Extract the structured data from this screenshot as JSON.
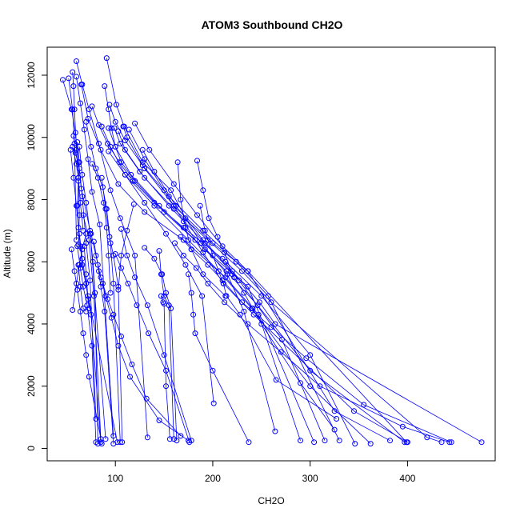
{
  "chart_data": {
    "type": "line",
    "title": "ATOM3 Southbound CH2O",
    "xlabel": "CH2O",
    "ylabel": "Altitude (m)",
    "xlim": [
      30,
      490
    ],
    "ylim": [
      -400,
      12900
    ],
    "xticks": [
      100,
      200,
      300,
      400
    ],
    "yticks": [
      0,
      2000,
      4000,
      6000,
      8000,
      10000,
      12000
    ],
    "color": "#0000ff",
    "marker": "open-circle",
    "grid": false,
    "series": [
      {
        "x": [
          91,
          101,
          109,
          128,
          157,
          172,
          188,
          215,
          232,
          264
        ],
        "y": [
          12550,
          11050,
          10350,
          9200,
          8300,
          7400,
          6600,
          5600,
          4400,
          550
        ]
      },
      {
        "x": [
          60,
          66,
          73,
          83,
          95,
          105,
          120,
          133
        ],
        "y": [
          12450,
          11700,
          10900,
          9800,
          8300,
          7400,
          6200,
          350
        ]
      },
      {
        "x": [
          56,
          57,
          58,
          60,
          62,
          63,
          62
        ],
        "y": [
          12100,
          11650,
          10900,
          9600,
          8700,
          7500,
          6550
        ]
      },
      {
        "x": [
          46,
          55,
          59,
          62,
          65,
          74,
          90
        ],
        "y": [
          11850,
          10900,
          10150,
          9200,
          8350,
          7000,
          300
        ]
      },
      {
        "x": [
          60,
          64,
          68,
          72,
          76,
          84,
          98
        ],
        "y": [
          11950,
          11100,
          10250,
          9300,
          8250,
          7200,
          400
        ]
      },
      {
        "x": [
          52,
          56,
          58,
          60
        ],
        "y": [
          11900,
          10900,
          9800,
          6700
        ]
      },
      {
        "x": [
          89,
          93,
          96,
          100,
          106,
          120,
          150,
          192,
          236,
          304
        ],
        "y": [
          11650,
          10900,
          10300,
          9700,
          9200,
          8600,
          7600,
          6400,
          5200,
          200
        ]
      },
      {
        "x": [
          65,
          72,
          85,
          103,
          130,
          170,
          213,
          247,
          290
        ],
        "y": [
          11700,
          10600,
          9600,
          8500,
          7600,
          6700,
          5500,
          4300,
          250
        ]
      },
      {
        "x": [
          76,
          83,
          92,
          104,
          118,
          140,
          170,
          210,
          250,
          300,
          346
        ],
        "y": [
          11000,
          10400,
          9800,
          9200,
          8600,
          7900,
          7100,
          6100,
          4900,
          3000,
          150
        ]
      },
      {
        "x": [
          94,
          100,
          110,
          128,
          155,
          190,
          224,
          257,
          330
        ],
        "y": [
          11050,
          10500,
          9900,
          9100,
          8100,
          7000,
          6000,
          4900,
          250
        ]
      },
      {
        "x": [
          120,
          135,
          160,
          184,
          210,
          236,
          399
        ],
        "y": [
          10450,
          9600,
          8500,
          7500,
          6500,
          5700,
          200
        ]
      },
      {
        "x": [
          108,
          112,
          130,
          160,
          200,
          236,
          325,
          382
        ],
        "y": [
          10350,
          10000,
          9000,
          7800,
          6600,
          5700,
          1200,
          250
        ]
      },
      {
        "x": [
          99,
          105,
          125,
          155,
          192,
          227,
          271,
          315
        ],
        "y": [
          10300,
          9800,
          8900,
          7800,
          6600,
          5400,
          3500,
          250
        ]
      },
      {
        "x": [
          93,
          100,
          116,
          145,
          182,
          214,
          246,
          300,
          397
        ],
        "y": [
          10300,
          9700,
          8800,
          7800,
          6700,
          5700,
          4600,
          2500,
          200
        ]
      },
      {
        "x": [
          86,
          95,
          110,
          140,
          175,
          206,
          240,
          300,
          362
        ],
        "y": [
          10350,
          9700,
          8800,
          7800,
          6700,
          5700,
          4500,
          2000,
          150
        ]
      },
      {
        "x": [
          103,
          110,
          130,
          160,
          195,
          230,
          260,
          420,
          435
        ],
        "y": [
          10200,
          9600,
          8700,
          7700,
          6700,
          5700,
          4700,
          350,
          200
        ]
      },
      {
        "x": [
          70,
          75,
          80,
          87,
          91,
          95,
          98,
          105
        ],
        "y": [
          10500,
          9700,
          9000,
          8400,
          7700,
          6600,
          5300,
          200
        ]
      },
      {
        "x": [
          57,
          59,
          63,
          66,
          70,
          74,
          80
        ],
        "y": [
          10050,
          9500,
          9000,
          8100,
          6600,
          5400,
          950
        ]
      },
      {
        "x": [
          56,
          60,
          62,
          64,
          67
        ],
        "y": [
          9700,
          9150,
          8700,
          7900,
          7000
        ]
      },
      {
        "x": [
          54,
          57,
          60,
          63,
          66,
          70,
          73
        ],
        "y": [
          9600,
          8700,
          7800,
          6900,
          6100,
          5300,
          4500
        ]
      },
      {
        "x": [
          61,
          63,
          62,
          61,
          62,
          64,
          66,
          72,
          102
        ],
        "y": [
          9850,
          9200,
          8600,
          7800,
          7100,
          6500,
          5900,
          4900,
          200
        ]
      },
      {
        "x": [
          63,
          66,
          70,
          74,
          77,
          79,
          82
        ],
        "y": [
          9700,
          8800,
          7900,
          6900,
          6000,
          5000,
          150
        ]
      },
      {
        "x": [
          93,
          110,
          130,
          152,
          172,
          189,
          201
        ],
        "y": [
          9550,
          8800,
          7900,
          6900,
          5900,
          4900,
          1450
        ]
      },
      {
        "x": [
          114,
          130,
          150,
          170,
          190,
          211,
          242,
          345,
          400
        ],
        "y": [
          10250,
          9300,
          8300,
          7300,
          6300,
          5300,
          4300,
          1200,
          200
        ]
      },
      {
        "x": [
          128,
          140,
          162,
          190,
          220,
          248,
          264,
          476
        ],
        "y": [
          9600,
          8900,
          7800,
          6700,
          5700,
          4700,
          4000,
          200
        ]
      },
      {
        "x": [
          184,
          190,
          196,
          205,
          212,
          220
        ],
        "y": [
          9250,
          8300,
          7400,
          6800,
          6300,
          5600
        ]
      },
      {
        "x": [
          164,
          167,
          172,
          178,
          190,
          213
        ],
        "y": [
          9200,
          8000,
          7100,
          6400,
          5600,
          4900
        ]
      },
      {
        "x": [
          76,
          82,
          88,
          91,
          93,
          95
        ],
        "y": [
          9150,
          8700,
          7900,
          7100,
          6200,
          5000
        ]
      },
      {
        "x": [
          86,
          90,
          94,
          98,
          103,
          107
        ],
        "y": [
          8700,
          7700,
          6800,
          6200,
          5200,
          200
        ]
      },
      {
        "x": [
          67,
          73,
          78,
          85
        ],
        "y": [
          7500,
          6700,
          4900,
          300
        ]
      },
      {
        "x": [
          119,
          112,
          106,
          103
        ],
        "y": [
          7850,
          7000,
          6200,
          5100
        ]
      },
      {
        "x": [
          130,
          140,
          148,
          152,
          157,
          163
        ],
        "y": [
          6450,
          6100,
          5600,
          5000,
          4500,
          250
        ]
      },
      {
        "x": [
          78,
          82,
          85,
          89,
          98
        ],
        "y": [
          6650,
          5900,
          5200,
          4400,
          150
        ]
      },
      {
        "x": [
          61,
          64,
          67,
          71,
          76,
          80
        ],
        "y": [
          6500,
          5800,
          5200,
          4600,
          3300,
          200
        ]
      },
      {
        "x": [
          55,
          58,
          61,
          64,
          67,
          70,
          73,
          86
        ],
        "y": [
          6400,
          5700,
          5100,
          4400,
          3700,
          3000,
          2300,
          150
        ]
      },
      {
        "x": [
          56,
          60,
          63,
          66,
          70
        ],
        "y": [
          4450,
          5300,
          5900,
          6400,
          6900
        ]
      },
      {
        "x": [
          62,
          64,
          67,
          70
        ],
        "y": [
          5900,
          5200,
          4500,
          4400
        ]
      },
      {
        "x": [
          68,
          70,
          72,
          75,
          85
        ],
        "y": [
          6500,
          5600,
          4800,
          4300,
          200
        ]
      },
      {
        "x": [
          145,
          147,
          150,
          155,
          160
        ],
        "y": [
          6350,
          5600,
          4900,
          4600,
          300
        ]
      },
      {
        "x": [
          175,
          178,
          180,
          182,
          200,
          237
        ],
        "y": [
          5600,
          5000,
          4300,
          3700,
          2500,
          200
        ]
      },
      {
        "x": [
          147,
          149,
          150,
          152,
          156
        ],
        "y": [
          4900,
          4700,
          4650,
          2000,
          300
        ]
      },
      {
        "x": [
          106,
          112,
          120,
          133,
          150,
          178
        ],
        "y": [
          7050,
          6200,
          5500,
          4600,
          3000,
          250
        ]
      },
      {
        "x": [
          187,
          192,
          200,
          211,
          214,
          228,
          265,
          327
        ],
        "y": [
          7800,
          7000,
          6200,
          5300,
          4900,
          4300,
          2200,
          950
        ]
      },
      {
        "x": [
          100,
          106,
          113,
          122,
          134,
          152,
          176
        ],
        "y": [
          6250,
          5800,
          5300,
          4600,
          3700,
          2500,
          200
        ]
      },
      {
        "x": [
          83,
          87,
          92,
          98,
          106,
          117,
          132,
          167
        ],
        "y": [
          5700,
          5300,
          4800,
          4300,
          3600,
          2700,
          1600,
          400
        ]
      },
      {
        "x": [
          75,
          80,
          85,
          90,
          96,
          103,
          115,
          145,
          175
        ],
        "y": [
          6900,
          6200,
          5500,
          4900,
          4200,
          3300,
          2300,
          900,
          250
        ]
      },
      {
        "x": [
          161,
          170,
          183,
          195,
          212,
          236,
          270,
          310,
          395,
          443
        ],
        "y": [
          6600,
          6200,
          5800,
          5300,
          4700,
          4000,
          3100,
          2000,
          700,
          200
        ]
      },
      {
        "x": [
          167,
          178,
          195,
          210,
          230,
          260,
          296,
          355,
          445
        ],
        "y": [
          6800,
          6400,
          5900,
          5400,
          4700,
          3900,
          2900,
          1400,
          200
        ]
      },
      {
        "x": [
          213,
          222,
          232,
          241,
          250,
          290,
          325
        ],
        "y": [
          6000,
          5500,
          5000,
          4500,
          4000,
          2100,
          600
        ]
      }
    ]
  }
}
